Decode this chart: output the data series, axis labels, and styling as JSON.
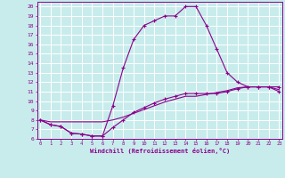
{
  "xlabel": "Windchill (Refroidissement éolien,°C)",
  "background_color": "#c8ecec",
  "line_color": "#8b008b",
  "grid_color": "#ffffff",
  "x_ticks": [
    0,
    1,
    2,
    3,
    4,
    5,
    6,
    7,
    8,
    9,
    10,
    11,
    12,
    13,
    14,
    15,
    16,
    17,
    18,
    19,
    20,
    21,
    22,
    23
  ],
  "y_ticks": [
    6,
    7,
    8,
    9,
    10,
    11,
    12,
    13,
    14,
    15,
    16,
    17,
    18,
    19,
    20
  ],
  "xlim": [
    -0.3,
    23.3
  ],
  "ylim": [
    6,
    20.5
  ],
  "curve1_x": [
    0,
    1,
    2,
    3,
    4,
    5,
    6,
    7,
    8,
    9,
    10,
    11,
    12,
    13,
    14,
    15,
    16,
    17,
    18,
    19,
    20,
    21,
    22,
    23
  ],
  "curve1_y": [
    8,
    7.5,
    7.3,
    6.6,
    6.5,
    6.3,
    6.3,
    9.5,
    13.5,
    16.5,
    18,
    18.5,
    19,
    19,
    20,
    20,
    18,
    15.5,
    13,
    12,
    11.5,
    11.5,
    11.5,
    11.5
  ],
  "curve2_x": [
    0,
    1,
    2,
    3,
    4,
    5,
    6,
    7,
    8,
    9,
    10,
    11,
    12,
    13,
    14,
    15,
    16,
    17,
    18,
    19,
    20,
    21,
    22,
    23
  ],
  "curve2_y": [
    8,
    7.5,
    7.3,
    6.6,
    6.5,
    6.3,
    6.3,
    7.2,
    8.0,
    8.8,
    9.3,
    9.8,
    10.2,
    10.5,
    10.8,
    10.8,
    10.8,
    10.8,
    11.0,
    11.3,
    11.5,
    11.5,
    11.5,
    11.0
  ],
  "curve3_x": [
    0,
    1,
    2,
    3,
    4,
    5,
    6,
    7,
    8,
    9,
    10,
    11,
    12,
    13,
    14,
    15,
    16,
    17,
    18,
    19,
    20,
    21,
    22,
    23
  ],
  "curve3_y": [
    8.0,
    7.8,
    7.8,
    7.8,
    7.8,
    7.8,
    7.8,
    8.0,
    8.3,
    8.7,
    9.1,
    9.5,
    9.9,
    10.2,
    10.5,
    10.5,
    10.7,
    10.9,
    11.1,
    11.4,
    11.5,
    11.5,
    11.5,
    11.2
  ]
}
